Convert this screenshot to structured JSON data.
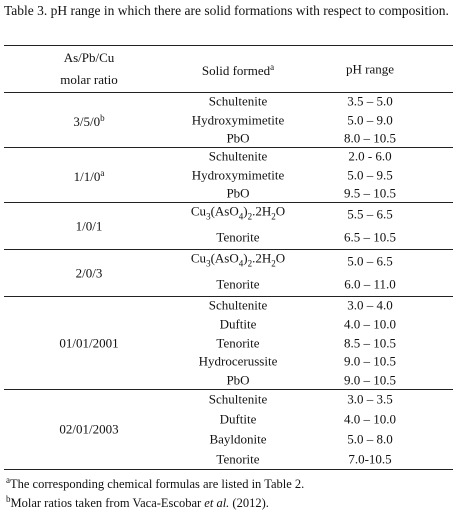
{
  "title": "Table 3. pH range in which there are solid formations with respect to composition.",
  "table": {
    "header": {
      "ratio": [
        "As/Pb/Cu",
        "molar ratio"
      ],
      "solid": "Solid formed",
      "solid_sup": "a",
      "ph": "pH range"
    },
    "groups": [
      {
        "ratio": "3/5/0",
        "ratio_sup": "b",
        "rows": [
          {
            "solid": [
              "Schultenite"
            ],
            "ph": "3.5 – 5.0"
          },
          {
            "solid": [
              "Hydroxymimetite"
            ],
            "ph": "5.0 – 9.0"
          },
          {
            "solid": [
              "PbO"
            ],
            "ph": "8.0 – 10.5"
          }
        ]
      },
      {
        "ratio": "1/1/0",
        "ratio_sup": "a",
        "rows": [
          {
            "solid": [
              "Schultenite"
            ],
            "ph": "2.0 - 6.0"
          },
          {
            "solid": [
              "Hydroxymimetite"
            ],
            "ph": "5.0 – 9.5"
          },
          {
            "solid": [
              "PbO"
            ],
            "ph": "9.5 – 10.5"
          }
        ]
      },
      {
        "ratio": "1/0/1",
        "rows": [
          {
            "solid": [
              "Cu",
              "3",
              "(AsO",
              "4",
              ")",
              "2",
              ".2H",
              "2",
              "O"
            ],
            "ph": "5.5 – 6.5"
          },
          {
            "solid": [
              "Tenorite"
            ],
            "ph": "6.5 – 10.5"
          }
        ]
      },
      {
        "ratio": "2/0/3",
        "rows": [
          {
            "solid": [
              "Cu",
              "3",
              "(AsO",
              "4",
              ")",
              "2",
              ".2H",
              "2",
              "O"
            ],
            "ph": "5.0 – 6.5"
          },
          {
            "solid": [
              "Tenorite"
            ],
            "ph": "6.0 – 11.0"
          }
        ]
      },
      {
        "ratio": "01/01/2001",
        "rows": [
          {
            "solid": [
              "Schultenite"
            ],
            "ph": "3.0 – 4.0"
          },
          {
            "solid": [
              "Duftite"
            ],
            "ph": "4.0 – 10.0"
          },
          {
            "solid": [
              "Tenorite"
            ],
            "ph": "8.5 – 10.5"
          },
          {
            "solid": [
              "Hydrocerussite"
            ],
            "ph": "9.0 – 10.5"
          },
          {
            "solid": [
              "PbO"
            ],
            "ph": "9.0 – 10.5"
          }
        ]
      },
      {
        "ratio": "02/01/2003",
        "rows": [
          {
            "solid": [
              "Schultenite"
            ],
            "ph": "3.0 – 3.5"
          },
          {
            "solid": [
              "Duftite"
            ],
            "ph": "4.0 – 10.0"
          },
          {
            "solid": [
              "Bayldonite"
            ],
            "ph": "5.0 – 8.0"
          },
          {
            "solid": [
              "Tenorite"
            ],
            "ph": "7.0-10.5"
          }
        ]
      }
    ]
  },
  "footnotes": [
    {
      "mark": "a",
      "text": [
        "The corresponding chemical formulas are listed in Table 2."
      ]
    },
    {
      "mark": "b",
      "text": [
        "Molar ratios taken from Vaca-Escobar ",
        "et al.",
        " (2012)."
      ]
    }
  ]
}
